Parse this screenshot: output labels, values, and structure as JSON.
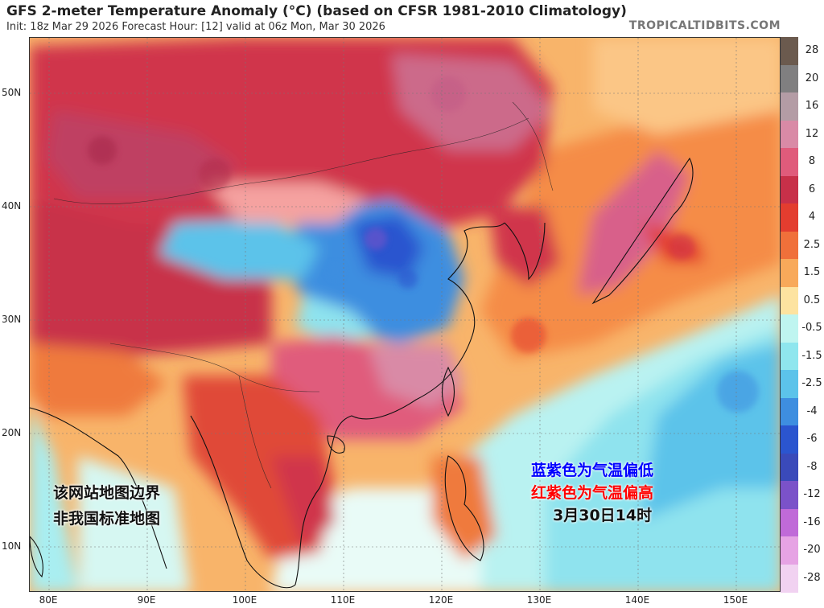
{
  "header": {
    "title": "GFS 2-meter Temperature Anomaly (°C) (based on CFSR 1981-2010 Climatology)",
    "subtitle": "Init: 18z Mar 29 2026   Forecast Hour: [12]   valid at 06z Mon, Mar 30 2026",
    "brand": "TROPICALTIDBITS.COM"
  },
  "axes": {
    "lat_labels": [
      "50N",
      "40N",
      "30N",
      "20N",
      "10N"
    ],
    "lon_labels": [
      "80E",
      "90E",
      "100E",
      "110E",
      "120E",
      "130E",
      "140E",
      "150E"
    ]
  },
  "colorbar": {
    "labels": [
      "28",
      "20",
      "16",
      "12",
      "8",
      "6",
      "4",
      "2.5",
      "1.5",
      "0.5",
      "-0.5",
      "-1.5",
      "-2.5",
      "-4",
      "-6",
      "-8",
      "-12",
      "-16",
      "-20",
      "-28"
    ],
    "colors": [
      "#6b5a4e",
      "#807f80",
      "#b49ca5",
      "#d98aa6",
      "#e05b7b",
      "#c83049",
      "#e33d2f",
      "#f0703a",
      "#f8a95a",
      "#fde3a0",
      "#bff5f0",
      "#8fe6ee",
      "#5cc3ea",
      "#3e8ee0",
      "#2b55cf",
      "#3a4aba",
      "#7b52c9",
      "#c06ad8",
      "#e6a3e4",
      "#f1d2f1"
    ]
  },
  "overlays": {
    "notice_line1": "该网站地图边界",
    "notice_line2": "非我国标准地图",
    "legend_blue": "蓝紫色为气温偏低",
    "legend_red": "红紫色为气温偏高",
    "time_label": "3月30日14时"
  }
}
